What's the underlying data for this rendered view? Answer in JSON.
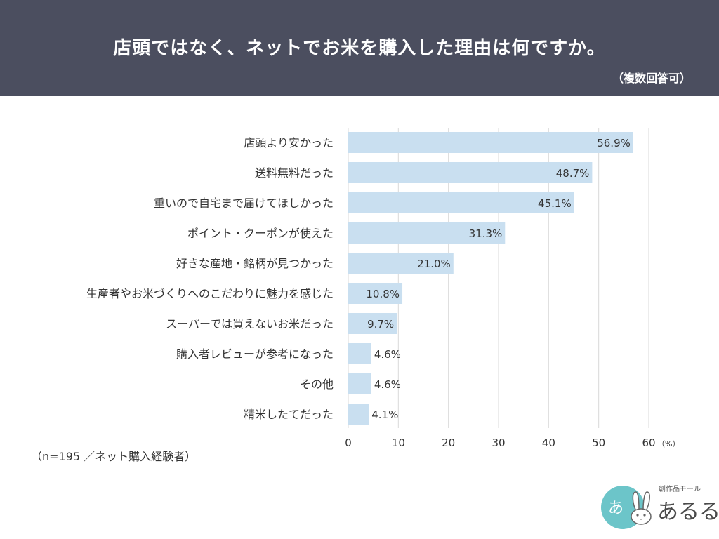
{
  "header": {
    "title": "店頭ではなく、ネットでお米を購入した理由は何ですか。",
    "subtitle": "（複数回答可）"
  },
  "chart_data": {
    "type": "bar",
    "orientation": "horizontal",
    "categories": [
      "店頭より安かった",
      "送料無料だった",
      "重いので自宅まで届けてほしかった",
      "ポイント・クーポンが使えた",
      "好きな産地・銘柄が見つかった",
      "生産者やお米づくりへのこだわりに魅力を感じた",
      "スーパーでは買えないお米だった",
      "購入者レビューが参考になった",
      "その他",
      "精米したてだった"
    ],
    "values": [
      56.9,
      48.7,
      45.1,
      31.3,
      21.0,
      10.8,
      9.7,
      4.6,
      4.6,
      4.1
    ],
    "value_labels": [
      "56.9%",
      "48.7%",
      "45.1%",
      "31.3%",
      "21.0%",
      "10.8%",
      "9.7%",
      "4.6%",
      "4.6%",
      "4.1%"
    ],
    "xlim": [
      0,
      60
    ],
    "xticks": [
      "0",
      "10",
      "20",
      "30",
      "40",
      "50",
      "60"
    ],
    "xunit": "（%）",
    "grid": "vertical",
    "bar_color": "#c9dff0",
    "label_color": "#333333"
  },
  "footnote": "（n=195 ／ネット購入経験者）",
  "logo": {
    "brand_small": "創作品モール",
    "brand_main": "あるる",
    "circle_text": "あ"
  },
  "colors": {
    "header_bg": "#4b4e5f",
    "grid": "#d9d9d9",
    "logo_teal": "#6cc5c9"
  }
}
